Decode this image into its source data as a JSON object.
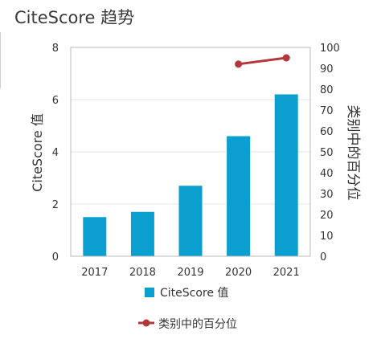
{
  "page": {
    "title": "CiteScore 趋势"
  },
  "colors": {
    "bar": "#0a9fcf",
    "line": "#b3363b",
    "grid": "#e4e4e4",
    "frame": "#b8b8b8"
  },
  "chart_data": {
    "type": "bar",
    "title": "",
    "categories": [
      "2017",
      "2018",
      "2019",
      "2020",
      "2021"
    ],
    "series": [
      {
        "name": "CiteScore 值",
        "type": "bar",
        "axis": "left",
        "values": [
          1.5,
          1.7,
          2.7,
          4.6,
          6.2
        ]
      },
      {
        "name": "类别中的百分位",
        "type": "line",
        "axis": "right",
        "values": [
          null,
          null,
          null,
          92,
          95
        ]
      }
    ],
    "ylabel": "CiteScore 值",
    "ylim": [
      0,
      8
    ],
    "yticks": [
      "0",
      "2",
      "4",
      "6",
      "8"
    ],
    "y2label": "类别中的百分位",
    "y2lim": [
      0,
      100
    ],
    "y2ticks": [
      "0",
      "10",
      "20",
      "30",
      "40",
      "50",
      "60",
      "70",
      "80",
      "90",
      "100"
    ],
    "grid": true,
    "legend_position": "bottom"
  }
}
